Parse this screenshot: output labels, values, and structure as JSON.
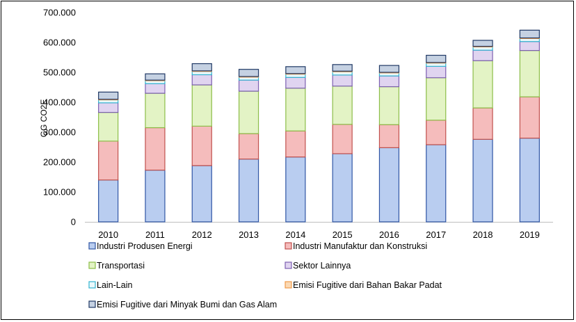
{
  "chart_data": {
    "type": "bar",
    "stacked": true,
    "title": "",
    "xlabel": "",
    "ylabel": "GG CO2E",
    "ylim": [
      0,
      700000
    ],
    "yticks": [
      0,
      100000,
      200000,
      300000,
      400000,
      500000,
      600000,
      700000
    ],
    "ytick_labels": [
      "0",
      "100.000",
      "200.000",
      "300.000",
      "400.000",
      "500.000",
      "600.000",
      "700.000"
    ],
    "grid": false,
    "legend_position": "bottom",
    "categories": [
      "2010",
      "2011",
      "2012",
      "2013",
      "2014",
      "2015",
      "2016",
      "2017",
      "2018",
      "2019"
    ],
    "series": [
      {
        "name": "Industri Produsen Energi",
        "color": "#b9cdf0",
        "edge": "#2f55a4",
        "values": [
          140000,
          173000,
          188000,
          210000,
          217000,
          228000,
          248000,
          258000,
          276000,
          280000
        ]
      },
      {
        "name": "Industri Manufaktur dan Konstruksi",
        "color": "#f5bcbc",
        "edge": "#c0504d",
        "values": [
          130000,
          142000,
          132000,
          85000,
          87000,
          98000,
          77000,
          82000,
          105000,
          138000
        ]
      },
      {
        "name": "Transportasi",
        "color": "#e3f3c5",
        "edge": "#8cbd48",
        "values": [
          96000,
          115000,
          138000,
          142000,
          143000,
          128000,
          127000,
          142000,
          158000,
          155000
        ]
      },
      {
        "name": "Sektor Lainnya",
        "color": "#e0d4f0",
        "edge": "#7c5fb0",
        "values": [
          32000,
          32000,
          34000,
          37000,
          36000,
          37000,
          36000,
          38000,
          35000,
          30000
        ]
      },
      {
        "name": "Lain-Lain",
        "color": "#eaf8fb",
        "edge": "#32b4d0",
        "values": [
          10000,
          10000,
          11000,
          10000,
          11000,
          11000,
          10000,
          11000,
          11000,
          10000
        ]
      },
      {
        "name": "Emisi Fugitive dari Bahan Bakar Padat",
        "color": "#fbd9b4",
        "edge": "#f09a4a",
        "values": [
          2000,
          2000,
          2000,
          2000,
          2000,
          2000,
          2000,
          2000,
          2000,
          2000
        ]
      },
      {
        "name": "Emisi Fugitive dari Minyak Bumi dan Gas Alam",
        "color": "#c5d1e2",
        "edge": "#1f3864",
        "values": [
          24000,
          21000,
          24000,
          24000,
          23000,
          22000,
          23000,
          24000,
          20000,
          26000
        ]
      }
    ]
  }
}
